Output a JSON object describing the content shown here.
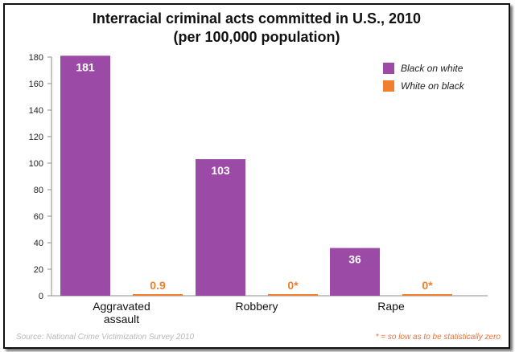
{
  "chart_data": {
    "type": "bar",
    "title": "Interracial criminal acts committed in U.S., 2010",
    "subtitle": "(per 100,000 population)",
    "categories": [
      "Aggravated assault",
      "Robbery",
      "Rape"
    ],
    "series": [
      {
        "name": "Black on white",
        "values": [
          181,
          103,
          36
        ],
        "labels": [
          "181",
          "103",
          "36"
        ],
        "color": "#9b4aa6"
      },
      {
        "name": "White on black",
        "values": [
          0.9,
          0,
          0
        ],
        "labels": [
          "0.9",
          "0*",
          "0*"
        ],
        "color": "#f07f2e"
      }
    ],
    "ylim": [
      0,
      180
    ],
    "yticks": [
      0,
      20,
      40,
      60,
      80,
      100,
      120,
      140,
      160,
      180
    ],
    "grid": false,
    "legend_position": "top-right",
    "source": "Source: National Crime Victimization Survey 2010",
    "footnote": "* = so low as to be statistically zero"
  }
}
